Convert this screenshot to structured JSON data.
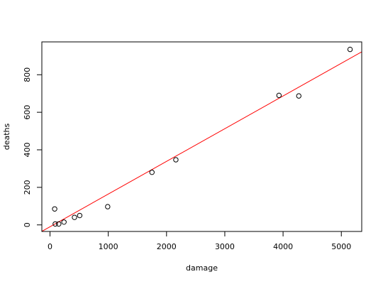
{
  "chart_data": {
    "type": "scatter",
    "title": "",
    "xlabel": "damage",
    "ylabel": "deaths",
    "xlim": [
      -140,
      5350
    ],
    "ylim": [
      -35,
      975
    ],
    "x_ticks": [
      0,
      1000,
      2000,
      3000,
      4000,
      5000
    ],
    "x_tick_labels": [
      "0",
      "1000",
      "2000",
      "3000",
      "4000",
      "5000"
    ],
    "y_ticks": [
      0,
      200,
      400,
      600,
      800
    ],
    "y_tick_labels": [
      "0",
      "200",
      "400",
      "600",
      "800"
    ],
    "grid": false,
    "series": [
      {
        "marker": "open-circle",
        "color": "#000000",
        "points": [
          {
            "x": 80,
            "y": 85
          },
          {
            "x": 90,
            "y": 5
          },
          {
            "x": 150,
            "y": 5
          },
          {
            "x": 240,
            "y": 15
          },
          {
            "x": 420,
            "y": 40
          },
          {
            "x": 510,
            "y": 50
          },
          {
            "x": 990,
            "y": 97
          },
          {
            "x": 1750,
            "y": 280
          },
          {
            "x": 2160,
            "y": 347
          },
          {
            "x": 3930,
            "y": 690
          },
          {
            "x": 4270,
            "y": 687
          },
          {
            "x": 5150,
            "y": 935
          }
        ]
      }
    ],
    "fit_line": {
      "color": "#ff0000",
      "intercept": -10,
      "slope": 0.1742
    }
  }
}
